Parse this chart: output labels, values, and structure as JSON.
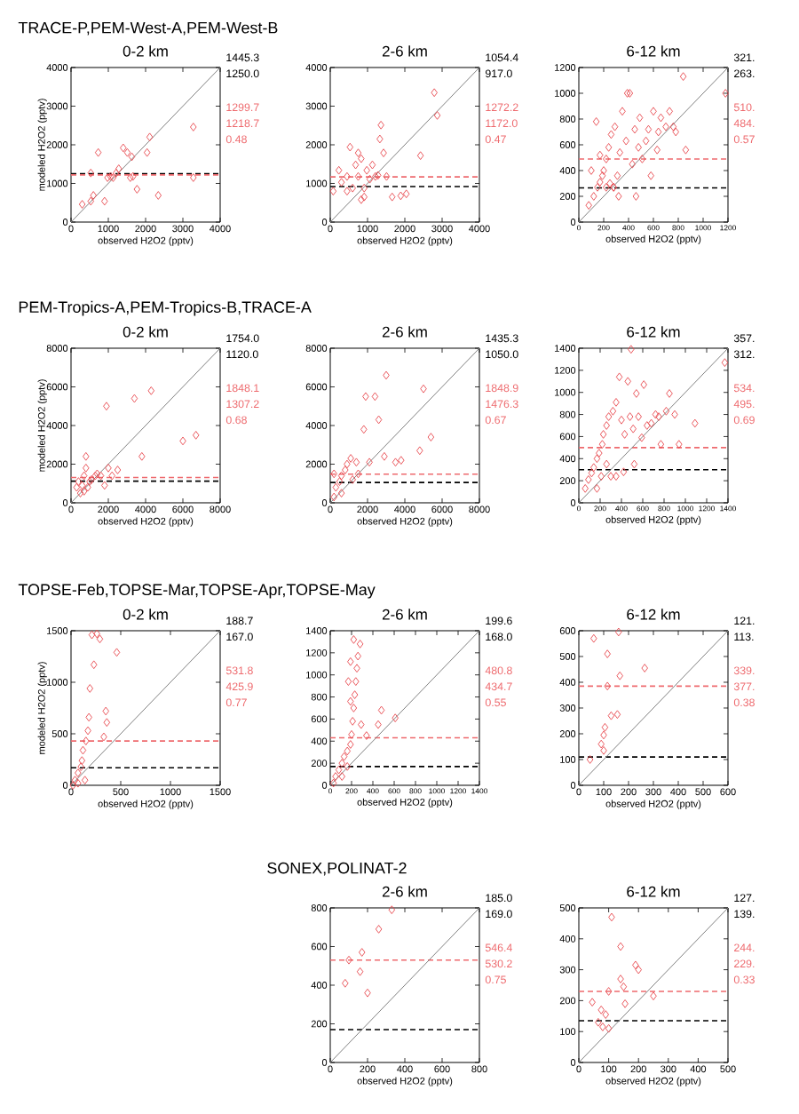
{
  "chart_data": [
    {
      "type": "scatter",
      "title": "0-2 km",
      "subtitle": "TRACE-P,PEM-West-A,PEM-West-B",
      "xlabel": "observed H2O2 (pptv)",
      "ylabel": "modeled H2O2 (pptv)",
      "xlim": [
        0,
        4000
      ],
      "ylim": [
        0,
        4000
      ],
      "xticks": [
        0,
        1000,
        2000,
        3000,
        4000
      ],
      "yticks": [
        0,
        1000,
        2000,
        3000,
        4000
      ],
      "marker": "diamond",
      "annotations": [
        "1445.3",
        "1250.0",
        "1299.7",
        "1218.7",
        "0.48"
      ],
      "ref_lines": [
        {
          "axis": "y",
          "value": 1250,
          "color": "#000000",
          "line_style": "dashed"
        },
        {
          "axis": "y",
          "value": 1220,
          "color": "#ee6a6e",
          "line_style": "dashed"
        }
      ],
      "series": [
        {
          "type": "line",
          "marker": "none",
          "color": "#808080",
          "x": [
            0,
            4000
          ],
          "values": [
            0,
            4000
          ]
        },
        {
          "color": "#e8474c",
          "x": [
            300,
            530,
            730,
            600,
            900,
            530,
            1060,
            1130,
            1210,
            1280,
            1400,
            1510,
            1630,
            1590,
            1770,
            2040,
            2110,
            2340,
            3280,
            3280,
            980,
            1660
          ],
          "values": [
            460,
            540,
            1800,
            690,
            540,
            1270,
            1180,
            1150,
            1270,
            1380,
            1920,
            1800,
            1690,
            1150,
            850,
            1800,
            2200,
            690,
            2460,
            1150,
            1150,
            1180
          ]
        }
      ]
    },
    {
      "type": "scatter",
      "title": "2-6 km",
      "xlabel": "observed H2O2 (pptv)",
      "xlim": [
        0,
        4000
      ],
      "ylim": [
        0,
        4000
      ],
      "xticks": [
        0,
        1000,
        2000,
        3000,
        4000
      ],
      "yticks": [
        0,
        1000,
        2000,
        3000,
        4000
      ],
      "marker": "diamond",
      "annotations": [
        "1054.4",
        "917.0",
        "1272.2",
        "1172.0",
        "0.47"
      ],
      "ref_lines": [
        {
          "axis": "y",
          "value": 920,
          "color": "#000000",
          "line_style": "dashed"
        },
        {
          "axis": "y",
          "value": 1170,
          "color": "#ee6a6e",
          "line_style": "dashed"
        }
      ],
      "series": [
        {
          "type": "line",
          "marker": "none",
          "color": "#808080",
          "x": [
            0,
            4000
          ],
          "values": [
            0,
            4000
          ]
        },
        {
          "color": "#e8474c",
          "x": [
            230,
            300,
            450,
            530,
            600,
            680,
            750,
            830,
            910,
            910,
            980,
            1060,
            1130,
            1210,
            450,
            750,
            1330,
            1360,
            1430,
            1280,
            1510,
            1660,
            1890,
            2040,
            2420,
            2790,
            2870,
            830,
            80
          ],
          "values": [
            1340,
            1030,
            1180,
            1940,
            880,
            1480,
            1180,
            1640,
            650,
            880,
            1340,
            1110,
            1480,
            1180,
            800,
            1790,
            2150,
            2510,
            1790,
            1210,
            1180,
            650,
            680,
            730,
            1720,
            3350,
            2760,
            580,
            800
          ]
        }
      ]
    },
    {
      "type": "scatter",
      "title": "6-12 km",
      "xlabel": "observed H2O2 (pptv)",
      "xlim": [
        0,
        1200
      ],
      "ylim": [
        0,
        1200
      ],
      "xticks": [
        0,
        200,
        400,
        600,
        800,
        1000,
        1200
      ],
      "yticks": [
        0,
        200,
        400,
        600,
        800,
        1000,
        1200
      ],
      "marker": "diamond",
      "annotations": [
        "321.",
        "263.",
        "510.",
        "484.",
        "0.57"
      ],
      "ref_lines": [
        {
          "axis": "y",
          "value": 265,
          "color": "#000000",
          "line_style": "dashed"
        },
        {
          "axis": "y",
          "value": 490,
          "color": "#ee6a6e",
          "line_style": "dashed"
        }
      ],
      "series": [
        {
          "type": "line",
          "marker": "none",
          "color": "#808080",
          "x": [
            0,
            1200
          ],
          "values": [
            0,
            1200
          ]
        },
        {
          "color": "#e8474c",
          "x": [
            80,
            120,
            150,
            170,
            190,
            140,
            200,
            220,
            240,
            260,
            280,
            290,
            310,
            330,
            350,
            380,
            390,
            410,
            430,
            450,
            460,
            480,
            490,
            510,
            540,
            560,
            580,
            600,
            630,
            640,
            660,
            700,
            730,
            760,
            780,
            840,
            860,
            1180,
            100,
            170,
            220,
            250,
            320,
            280
          ],
          "values": [
            130,
            200,
            270,
            310,
            360,
            780,
            400,
            490,
            580,
            680,
            270,
            740,
            360,
            540,
            860,
            630,
            1000,
            1000,
            450,
            720,
            200,
            580,
            810,
            490,
            630,
            720,
            360,
            860,
            560,
            700,
            810,
            740,
            860,
            740,
            700,
            1130,
            560,
            1000,
            400,
            520,
            270,
            300,
            200,
            270
          ]
        }
      ]
    },
    {
      "type": "scatter",
      "title": "0-2 km",
      "subtitle": "PEM-Tropics-A,PEM-Tropics-B,TRACE-A",
      "xlabel": "observed H2O2 (pptv)",
      "ylabel": "modeled H2O2 (pptv)",
      "xlim": [
        0,
        8000
      ],
      "ylim": [
        0,
        8000
      ],
      "xticks": [
        0,
        2000,
        4000,
        6000,
        8000
      ],
      "yticks": [
        0,
        2000,
        4000,
        6000,
        8000
      ],
      "marker": "diamond",
      "annotations": [
        "1754.0",
        "1120.0",
        "1848.1",
        "1307.2",
        "0.68"
      ],
      "ref_lines": [
        {
          "axis": "y",
          "value": 1120,
          "color": "#000000",
          "line_style": "dashed"
        },
        {
          "axis": "y",
          "value": 1310,
          "color": "#ee6a6e",
          "line_style": "dashed"
        }
      ],
      "series": [
        {
          "type": "line",
          "marker": "none",
          "color": "#808080",
          "x": [
            0,
            8000
          ],
          "values": [
            0,
            8000
          ]
        },
        {
          "color": "#e8474c",
          "x": [
            300,
            400,
            600,
            700,
            800,
            800,
            1000,
            1100,
            1300,
            1400,
            1600,
            1800,
            1900,
            2000,
            2200,
            2500,
            3400,
            3800,
            4300,
            6000,
            6700,
            500,
            700,
            900
          ],
          "values": [
            800,
            1100,
            900,
            1400,
            1800,
            2400,
            1100,
            1200,
            1400,
            1500,
            1400,
            900,
            5000,
            1800,
            1400,
            1700,
            5400,
            2400,
            5800,
            3200,
            3500,
            500,
            600,
            800
          ]
        }
      ]
    },
    {
      "type": "scatter",
      "title": "2-6 km",
      "xlabel": "observed H2O2 (pptv)",
      "xlim": [
        0,
        8000
      ],
      "ylim": [
        0,
        8000
      ],
      "xticks": [
        0,
        2000,
        4000,
        6000,
        8000
      ],
      "yticks": [
        0,
        2000,
        4000,
        6000,
        8000
      ],
      "marker": "diamond",
      "annotations": [
        "1435.3",
        "1050.0",
        "1848.9",
        "1476.3",
        "0.67"
      ],
      "ref_lines": [
        {
          "axis": "y",
          "value": 1050,
          "color": "#000000",
          "line_style": "dashed"
        },
        {
          "axis": "y",
          "value": 1480,
          "color": "#ee6a6e",
          "line_style": "dashed"
        }
      ],
      "series": [
        {
          "type": "line",
          "marker": "none",
          "color": "#808080",
          "x": [
            0,
            8000
          ],
          "values": [
            0,
            8000
          ]
        },
        {
          "color": "#e8474c",
          "x": [
            200,
            300,
            500,
            600,
            800,
            900,
            1100,
            1200,
            1400,
            1500,
            1800,
            1900,
            2100,
            2400,
            2600,
            3000,
            2900,
            3500,
            3800,
            4800,
            5000,
            5400,
            200,
            600
          ],
          "values": [
            300,
            800,
            1100,
            1400,
            1700,
            2000,
            2300,
            1200,
            2100,
            1500,
            3800,
            5500,
            2100,
            5500,
            4300,
            6600,
            2400,
            2100,
            2200,
            2700,
            5900,
            3400,
            1500,
            500
          ]
        }
      ]
    },
    {
      "type": "scatter",
      "title": "6-12 km",
      "xlabel": "observed H2O2 (pptv)",
      "xlim": [
        0,
        1400
      ],
      "ylim": [
        0,
        1400
      ],
      "xticks": [
        0,
        200,
        400,
        600,
        800,
        1000,
        1200,
        1400
      ],
      "yticks": [
        0,
        200,
        400,
        600,
        800,
        1000,
        1200,
        1400
      ],
      "marker": "diamond",
      "annotations": [
        "357.",
        "312.",
        "534.",
        "495.",
        "0.69"
      ],
      "ref_lines": [
        {
          "axis": "y",
          "value": 300,
          "color": "#000000",
          "line_style": "dashed"
        },
        {
          "axis": "y",
          "value": 500,
          "color": "#ee6a6e",
          "line_style": "dashed"
        }
      ],
      "series": [
        {
          "type": "line",
          "marker": "none",
          "color": "#808080",
          "x": [
            0,
            1400
          ],
          "values": [
            0,
            1400
          ]
        },
        {
          "color": "#e8474c",
          "x": [
            60,
            90,
            120,
            140,
            170,
            190,
            220,
            230,
            260,
            280,
            300,
            320,
            350,
            380,
            400,
            430,
            460,
            480,
            490,
            510,
            520,
            540,
            560,
            590,
            610,
            640,
            680,
            720,
            750,
            770,
            820,
            850,
            900,
            940,
            1090,
            1370,
            170,
            210,
            260,
            350,
            420
          ],
          "values": [
            130,
            210,
            270,
            320,
            400,
            450,
            530,
            620,
            700,
            780,
            240,
            830,
            910,
            1140,
            750,
            620,
            1100,
            780,
            1390,
            670,
            350,
            990,
            780,
            590,
            1070,
            700,
            720,
            800,
            780,
            530,
            830,
            990,
            800,
            530,
            720,
            1270,
            130,
            240,
            350,
            240,
            280
          ]
        }
      ]
    },
    {
      "type": "scatter",
      "title": "0-2 km",
      "subtitle": "TOPSE-Feb,TOPSE-Mar,TOPSE-Apr,TOPSE-May",
      "xlabel": "observed H2O2 (pptv)",
      "ylabel": "modeled H2O2 (pptv)",
      "xlim": [
        0,
        1500
      ],
      "ylim": [
        0,
        1500
      ],
      "xticks": [
        0,
        500,
        1000,
        1500
      ],
      "yticks": [
        0,
        500,
        1000,
        1500
      ],
      "marker": "diamond",
      "annotations": [
        "188.7",
        "167.0",
        "531.8",
        "425.9",
        "0.77"
      ],
      "ref_lines": [
        {
          "axis": "y",
          "value": 170,
          "color": "#000000",
          "line_style": "dashed"
        },
        {
          "axis": "y",
          "value": 430,
          "color": "#ee6a6e",
          "line_style": "dashed"
        }
      ],
      "series": [
        {
          "type": "line",
          "marker": "none",
          "color": "#808080",
          "x": [
            0,
            1500
          ],
          "values": [
            0,
            1500
          ]
        },
        {
          "color": "#e8474c",
          "x": [
            20,
            40,
            70,
            100,
            110,
            120,
            150,
            170,
            180,
            190,
            210,
            230,
            260,
            290,
            350,
            360,
            330,
            460,
            70,
            140
          ],
          "values": [
            0,
            50,
            120,
            180,
            240,
            340,
            430,
            530,
            660,
            940,
            1460,
            1170,
            1470,
            1420,
            720,
            610,
            470,
            1290,
            20,
            50
          ]
        }
      ]
    },
    {
      "type": "scatter",
      "title": "2-6 km",
      "xlabel": "observed H2O2 (pptv)",
      "xlim": [
        0,
        1400
      ],
      "ylim": [
        0,
        1400
      ],
      "xticks": [
        0,
        200,
        400,
        600,
        800,
        1000,
        1200,
        1400
      ],
      "yticks": [
        0,
        200,
        400,
        600,
        800,
        1000,
        1200,
        1400
      ],
      "marker": "diamond",
      "annotations": [
        "199.6",
        "168.0",
        "480.8",
        "434.7",
        "0.55"
      ],
      "ref_lines": [
        {
          "axis": "y",
          "value": 170,
          "color": "#000000",
          "line_style": "dashed"
        },
        {
          "axis": "y",
          "value": 430,
          "color": "#ee6a6e",
          "line_style": "dashed"
        }
      ],
      "series": [
        {
          "type": "line",
          "marker": "none",
          "color": "#808080",
          "x": [
            0,
            1400
          ],
          "values": [
            0,
            1400
          ]
        },
        {
          "color": "#e8474c",
          "x": [
            30,
            50,
            80,
            110,
            130,
            160,
            190,
            200,
            210,
            220,
            230,
            240,
            250,
            260,
            280,
            220,
            190,
            170,
            190,
            290,
            340,
            450,
            480,
            610,
            160,
            110
          ],
          "values": [
            20,
            80,
            140,
            200,
            260,
            310,
            370,
            460,
            580,
            700,
            820,
            940,
            1060,
            1170,
            1280,
            1320,
            760,
            940,
            1120,
            550,
            450,
            550,
            680,
            610,
            170,
            80
          ]
        }
      ]
    },
    {
      "type": "scatter",
      "title": "6-12 km",
      "xlabel": "observed H2O2 (pptv)",
      "xlim": [
        0,
        600
      ],
      "ylim": [
        0,
        600
      ],
      "xticks": [
        0,
        100,
        200,
        300,
        400,
        500,
        600
      ],
      "yticks": [
        0,
        100,
        200,
        300,
        400,
        500,
        600
      ],
      "marker": "diamond",
      "annotations": [
        "121.",
        "113.",
        "339.",
        "377.",
        "0.38"
      ],
      "ref_lines": [
        {
          "axis": "y",
          "value": 110,
          "color": "#000000",
          "line_style": "dashed"
        },
        {
          "axis": "y",
          "value": 385,
          "color": "#ee6a6e",
          "line_style": "dashed"
        }
      ],
      "series": [
        {
          "type": "line",
          "marker": "none",
          "color": "#808080",
          "x": [
            0,
            600
          ],
          "values": [
            0,
            600
          ]
        },
        {
          "color": "#e8474c",
          "x": [
            45,
            60,
            90,
            100,
            105,
            115,
            115,
            130,
            155,
            160,
            165,
            265,
            100
          ],
          "values": [
            100,
            570,
            160,
            195,
            225,
            510,
            385,
            270,
            275,
            595,
            425,
            455,
            135
          ]
        }
      ]
    },
    {
      "type": "scatter",
      "title": "2-6 km",
      "subtitle": "SONEX,POLINAT-2",
      "xlabel": "observed H2O2 (pptv)",
      "xlim": [
        0,
        800
      ],
      "ylim": [
        0,
        800
      ],
      "xticks": [
        0,
        200,
        400,
        600,
        800
      ],
      "yticks": [
        0,
        200,
        400,
        600,
        800
      ],
      "marker": "diamond",
      "annotations": [
        "185.0",
        "169.0",
        "546.4",
        "530.2",
        "0.75"
      ],
      "ref_lines": [
        {
          "axis": "y",
          "value": 170,
          "color": "#000000",
          "line_style": "dashed"
        },
        {
          "axis": "y",
          "value": 530,
          "color": "#ee6a6e",
          "line_style": "dashed"
        }
      ],
      "series": [
        {
          "type": "line",
          "marker": "none",
          "color": "#808080",
          "x": [
            0,
            800
          ],
          "values": [
            0,
            800
          ]
        },
        {
          "color": "#e8474c",
          "x": [
            80,
            100,
            160,
            170,
            200,
            260,
            330
          ],
          "values": [
            410,
            530,
            470,
            570,
            360,
            690,
            790
          ]
        }
      ]
    },
    {
      "type": "scatter",
      "title": "6-12 km",
      "xlabel": "observed H2O2 (pptv)",
      "xlim": [
        0,
        500
      ],
      "ylim": [
        0,
        500
      ],
      "xticks": [
        0,
        100,
        200,
        300,
        400,
        500
      ],
      "yticks": [
        0,
        100,
        200,
        300,
        400,
        500
      ],
      "marker": "diamond",
      "annotations": [
        "127.",
        "139.",
        "244.",
        "229.",
        "0.33"
      ],
      "ref_lines": [
        {
          "axis": "y",
          "value": 135,
          "color": "#000000",
          "line_style": "dashed"
        },
        {
          "axis": "y",
          "value": 230,
          "color": "#ee6a6e",
          "line_style": "dashed"
        }
      ],
      "series": [
        {
          "type": "line",
          "marker": "none",
          "color": "#808080",
          "x": [
            0,
            500
          ],
          "values": [
            0,
            500
          ]
        },
        {
          "color": "#e8474c",
          "x": [
            45,
            65,
            75,
            90,
            100,
            100,
            110,
            140,
            140,
            150,
            155,
            190,
            200,
            250,
            80
          ],
          "values": [
            195,
            130,
            170,
            155,
            110,
            230,
            470,
            375,
            270,
            245,
            190,
            315,
            300,
            215,
            115
          ]
        }
      ]
    }
  ]
}
